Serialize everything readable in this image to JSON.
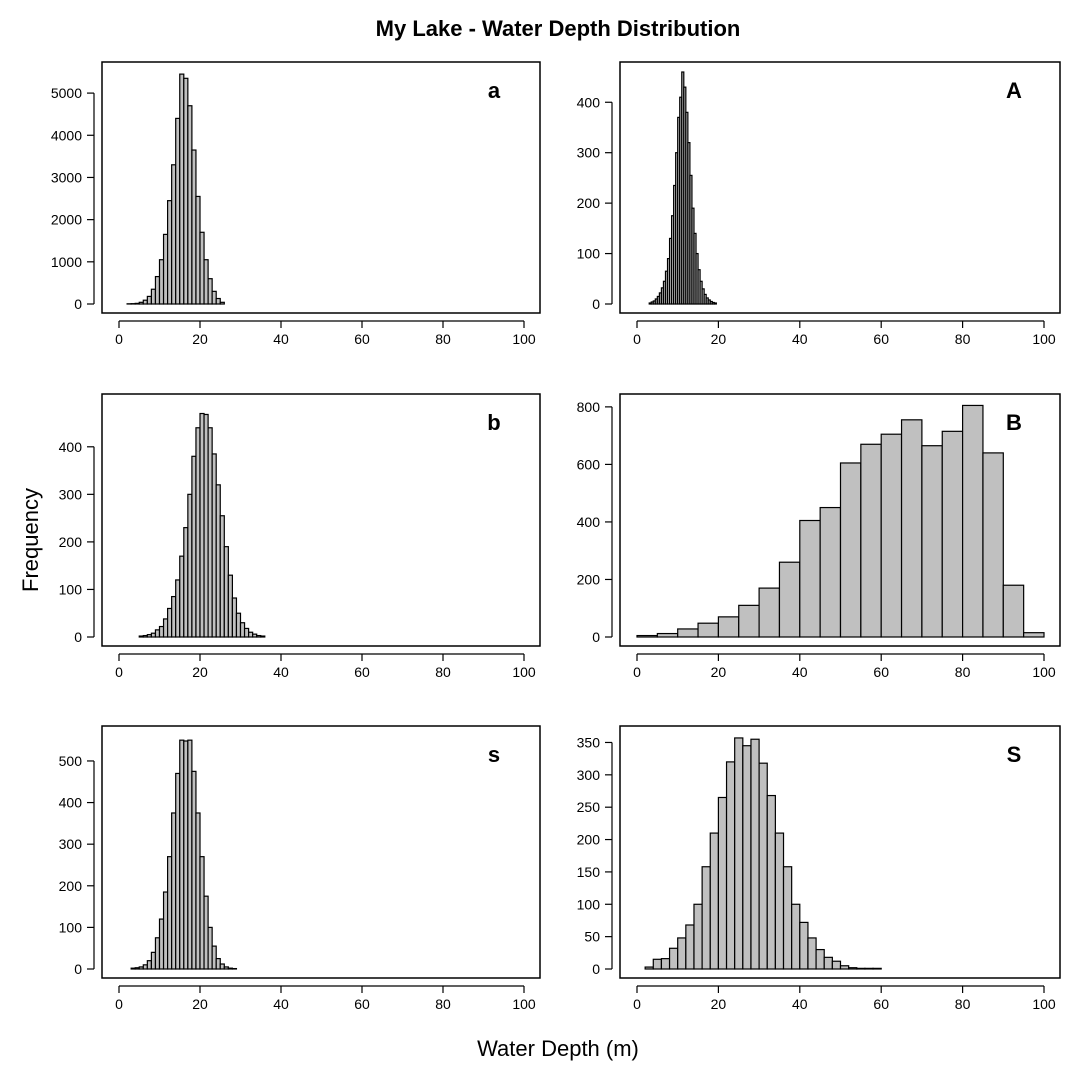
{
  "figure": {
    "title": "My Lake - Water Depth Distribution",
    "ylabel": "Frequency",
    "xlabel": "Water Depth  (m)"
  },
  "chart_data": [
    {
      "type": "bar",
      "panel": "a",
      "bin_width": 1,
      "xlim": [
        0,
        100
      ],
      "ylim": [
        0,
        5500
      ],
      "x_ticks": [
        0,
        20,
        40,
        60,
        80,
        100
      ],
      "y_ticks": [
        0,
        1000,
        2000,
        3000,
        4000,
        5000
      ],
      "bar_fill": "#c0c0c0",
      "bins": [
        [
          2,
          3,
          5
        ],
        [
          3,
          4,
          8
        ],
        [
          4,
          5,
          15
        ],
        [
          5,
          6,
          40
        ],
        [
          6,
          7,
          90
        ],
        [
          7,
          8,
          180
        ],
        [
          8,
          9,
          350
        ],
        [
          9,
          10,
          650
        ],
        [
          10,
          11,
          1050
        ],
        [
          11,
          12,
          1650
        ],
        [
          12,
          13,
          2450
        ],
        [
          13,
          14,
          3300
        ],
        [
          14,
          15,
          4400
        ],
        [
          15,
          16,
          5450
        ],
        [
          16,
          17,
          5350
        ],
        [
          17,
          18,
          4700
        ],
        [
          18,
          19,
          3650
        ],
        [
          19,
          20,
          2550
        ],
        [
          20,
          21,
          1700
        ],
        [
          21,
          22,
          1050
        ],
        [
          22,
          23,
          600
        ],
        [
          23,
          24,
          300
        ],
        [
          24,
          25,
          130
        ],
        [
          25,
          26,
          40
        ]
      ]
    },
    {
      "type": "bar",
      "panel": "A",
      "bin_width": 0.5,
      "xlim": [
        0,
        100
      ],
      "ylim": [
        0,
        460
      ],
      "x_ticks": [
        0,
        20,
        40,
        60,
        80,
        100
      ],
      "y_ticks": [
        0,
        100,
        200,
        300,
        400
      ],
      "bar_fill": "#c0c0c0",
      "bins": [
        [
          3,
          3.5,
          2
        ],
        [
          3.5,
          4,
          4
        ],
        [
          4,
          4.5,
          6
        ],
        [
          4.5,
          5,
          10
        ],
        [
          5,
          5.5,
          15
        ],
        [
          5.5,
          6,
          22
        ],
        [
          6,
          6.5,
          32
        ],
        [
          6.5,
          7,
          45
        ],
        [
          7,
          7.5,
          65
        ],
        [
          7.5,
          8,
          90
        ],
        [
          8,
          8.5,
          130
        ],
        [
          8.5,
          9,
          175
        ],
        [
          9,
          9.5,
          235
        ],
        [
          9.5,
          10,
          300
        ],
        [
          10,
          10.5,
          370
        ],
        [
          10.5,
          11,
          410
        ],
        [
          11,
          11.5,
          460
        ],
        [
          11.5,
          12,
          430
        ],
        [
          12,
          12.5,
          380
        ],
        [
          12.5,
          13,
          320
        ],
        [
          13,
          13.5,
          255
        ],
        [
          13.5,
          14,
          190
        ],
        [
          14,
          14.5,
          140
        ],
        [
          14.5,
          15,
          100
        ],
        [
          15,
          15.5,
          68
        ],
        [
          15.5,
          16,
          45
        ],
        [
          16,
          16.5,
          30
        ],
        [
          16.5,
          17,
          19
        ],
        [
          17,
          17.5,
          12
        ],
        [
          17.5,
          18,
          8
        ],
        [
          18,
          18.5,
          5
        ],
        [
          18.5,
          19,
          3
        ],
        [
          19,
          19.5,
          2
        ]
      ]
    },
    {
      "type": "bar",
      "panel": "b",
      "bin_width": 1,
      "xlim": [
        0,
        100
      ],
      "ylim": [
        0,
        490
      ],
      "x_ticks": [
        0,
        20,
        40,
        60,
        80,
        100
      ],
      "y_ticks": [
        0,
        100,
        200,
        300,
        400
      ],
      "bar_fill": "#c0c0c0",
      "bins": [
        [
          5,
          6,
          2
        ],
        [
          6,
          7,
          3
        ],
        [
          7,
          8,
          5
        ],
        [
          8,
          9,
          8
        ],
        [
          9,
          10,
          15
        ],
        [
          10,
          11,
          22
        ],
        [
          11,
          12,
          38
        ],
        [
          12,
          13,
          60
        ],
        [
          13,
          14,
          85
        ],
        [
          14,
          15,
          120
        ],
        [
          15,
          16,
          170
        ],
        [
          16,
          17,
          230
        ],
        [
          17,
          18,
          300
        ],
        [
          18,
          19,
          380
        ],
        [
          19,
          20,
          440
        ],
        [
          20,
          21,
          470
        ],
        [
          21,
          22,
          468
        ],
        [
          22,
          23,
          440
        ],
        [
          23,
          24,
          385
        ],
        [
          24,
          25,
          320
        ],
        [
          25,
          26,
          255
        ],
        [
          26,
          27,
          190
        ],
        [
          27,
          28,
          130
        ],
        [
          28,
          29,
          82
        ],
        [
          29,
          30,
          50
        ],
        [
          30,
          31,
          30
        ],
        [
          31,
          32,
          18
        ],
        [
          32,
          33,
          10
        ],
        [
          33,
          34,
          6
        ],
        [
          34,
          35,
          3
        ],
        [
          35,
          36,
          2
        ]
      ]
    },
    {
      "type": "bar",
      "panel": "B",
      "bin_width": 5,
      "xlim": [
        0,
        100
      ],
      "ylim": [
        0,
        810
      ],
      "x_ticks": [
        0,
        20,
        40,
        60,
        80,
        100
      ],
      "y_ticks": [
        0,
        200,
        400,
        600,
        800
      ],
      "bar_fill": "#c0c0c0",
      "bins": [
        [
          0,
          5,
          5
        ],
        [
          5,
          10,
          12
        ],
        [
          10,
          15,
          28
        ],
        [
          15,
          20,
          48
        ],
        [
          20,
          25,
          70
        ],
        [
          25,
          30,
          110
        ],
        [
          30,
          35,
          170
        ],
        [
          35,
          40,
          260
        ],
        [
          40,
          45,
          405
        ],
        [
          45,
          50,
          450
        ],
        [
          50,
          55,
          605
        ],
        [
          55,
          60,
          670
        ],
        [
          60,
          65,
          705
        ],
        [
          65,
          70,
          755
        ],
        [
          70,
          75,
          665
        ],
        [
          75,
          80,
          715
        ],
        [
          80,
          85,
          805
        ],
        [
          85,
          90,
          640
        ],
        [
          90,
          95,
          180
        ],
        [
          95,
          100,
          15
        ]
      ]
    },
    {
      "type": "bar",
      "panel": "s",
      "bin_width": 1,
      "xlim": [
        0,
        100
      ],
      "ylim": [
        0,
        560
      ],
      "x_ticks": [
        0,
        20,
        40,
        60,
        80,
        100
      ],
      "y_ticks": [
        0,
        100,
        200,
        300,
        400,
        500
      ],
      "bar_fill": "#c0c0c0",
      "bins": [
        [
          3,
          4,
          2
        ],
        [
          4,
          5,
          3
        ],
        [
          5,
          6,
          5
        ],
        [
          6,
          7,
          10
        ],
        [
          7,
          8,
          20
        ],
        [
          8,
          9,
          40
        ],
        [
          9,
          10,
          75
        ],
        [
          10,
          11,
          120
        ],
        [
          11,
          12,
          185
        ],
        [
          12,
          13,
          270
        ],
        [
          13,
          14,
          375
        ],
        [
          14,
          15,
          470
        ],
        [
          15,
          16,
          550
        ],
        [
          16,
          17,
          548
        ],
        [
          17,
          18,
          550
        ],
        [
          18,
          19,
          475
        ],
        [
          19,
          20,
          375
        ],
        [
          20,
          21,
          270
        ],
        [
          21,
          22,
          175
        ],
        [
          22,
          23,
          100
        ],
        [
          23,
          24,
          55
        ],
        [
          24,
          25,
          25
        ],
        [
          25,
          26,
          12
        ],
        [
          26,
          27,
          5
        ],
        [
          27,
          28,
          2
        ],
        [
          28,
          29,
          1
        ]
      ]
    },
    {
      "type": "bar",
      "panel": "S",
      "bin_width": 2,
      "xlim": [
        0,
        100
      ],
      "ylim": [
        0,
        360
      ],
      "x_ticks": [
        0,
        20,
        40,
        60,
        80,
        100
      ],
      "y_ticks": [
        0,
        50,
        100,
        150,
        200,
        250,
        300,
        350
      ],
      "bar_fill": "#c0c0c0",
      "bins": [
        [
          2,
          4,
          3
        ],
        [
          4,
          6,
          15
        ],
        [
          6,
          8,
          16
        ],
        [
          8,
          10,
          32
        ],
        [
          10,
          12,
          48
        ],
        [
          12,
          14,
          68
        ],
        [
          14,
          16,
          100
        ],
        [
          16,
          18,
          158
        ],
        [
          18,
          20,
          210
        ],
        [
          20,
          22,
          265
        ],
        [
          22,
          24,
          320
        ],
        [
          24,
          26,
          357
        ],
        [
          26,
          28,
          345
        ],
        [
          28,
          30,
          355
        ],
        [
          30,
          32,
          318
        ],
        [
          32,
          34,
          268
        ],
        [
          34,
          36,
          210
        ],
        [
          36,
          38,
          158
        ],
        [
          38,
          40,
          100
        ],
        [
          40,
          42,
          72
        ],
        [
          42,
          44,
          48
        ],
        [
          44,
          46,
          30
        ],
        [
          46,
          48,
          18
        ],
        [
          48,
          50,
          12
        ],
        [
          50,
          52,
          5
        ],
        [
          52,
          54,
          2
        ],
        [
          54,
          56,
          1
        ],
        [
          56,
          58,
          1
        ],
        [
          58,
          60,
          1
        ]
      ]
    }
  ]
}
